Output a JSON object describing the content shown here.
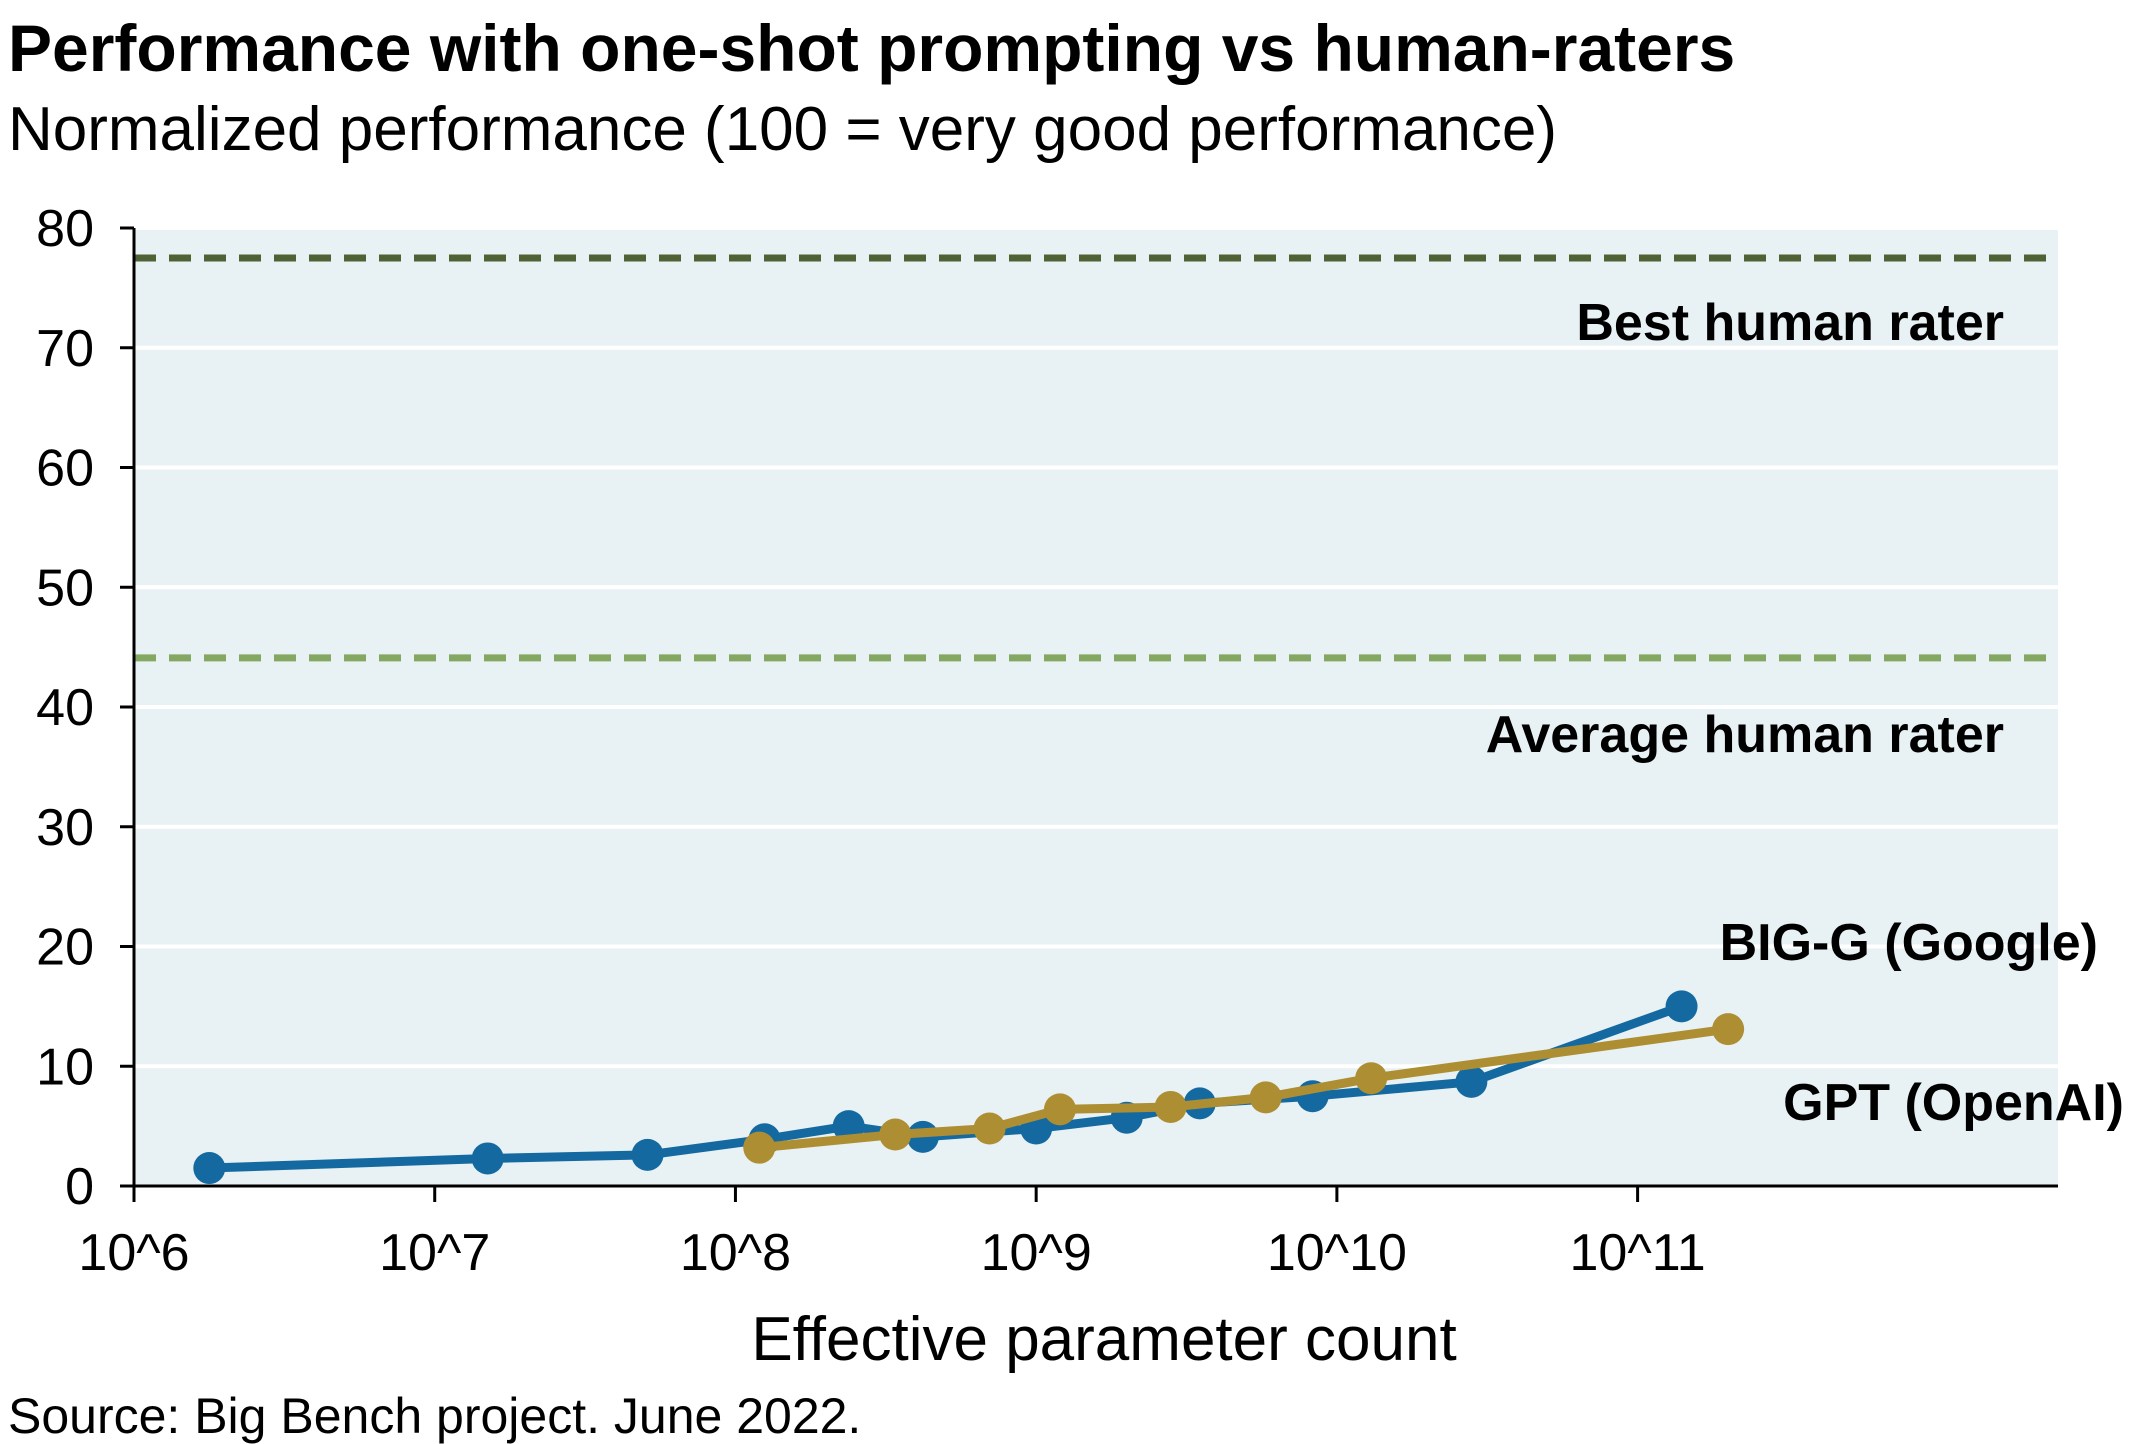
{
  "title": "Performance with one-shot prompting vs human-raters",
  "subtitle": "Normalized performance (100 = very good performance)",
  "source": "Source: Big Bench project. June 2022.",
  "chart_data": {
    "type": "line",
    "xlabel": "Effective parameter count",
    "ylabel": "",
    "x_scale": "log",
    "xlim": [
      1000000,
      2500000000000
    ],
    "ylim": [
      0,
      80
    ],
    "x_ticks": [
      {
        "value": 1000000,
        "label": "10^6"
      },
      {
        "value": 10000000,
        "label": "10^7"
      },
      {
        "value": 100000000,
        "label": "10^8"
      },
      {
        "value": 1000000000,
        "label": "10^9"
      },
      {
        "value": 10000000000,
        "label": "10^10"
      },
      {
        "value": 100000000000,
        "label": "10^11"
      }
    ],
    "y_ticks": [
      0,
      10,
      20,
      30,
      40,
      50,
      60,
      70,
      80
    ],
    "grid": "horizontal",
    "plot_background": "#e8f1f3",
    "reference_lines": [
      {
        "label": "Best human rater",
        "value": 77.5,
        "color": "#4f6236"
      },
      {
        "label": "Average human rater",
        "value": 44.1,
        "color": "#84a862"
      }
    ],
    "series": [
      {
        "name": "BIG-G (Google)",
        "color": "#1469a0",
        "points": [
          {
            "x": 1780000,
            "y": 1.5
          },
          {
            "x": 15000000,
            "y": 2.3
          },
          {
            "x": 51000000,
            "y": 2.6
          },
          {
            "x": 125000000,
            "y": 3.9
          },
          {
            "x": 238000000,
            "y": 5.0
          },
          {
            "x": 420000000,
            "y": 4.1
          },
          {
            "x": 1000000000,
            "y": 4.8
          },
          {
            "x": 2000000000,
            "y": 5.7
          },
          {
            "x": 3500000000,
            "y": 6.9
          },
          {
            "x": 8300000000,
            "y": 7.5
          },
          {
            "x": 28000000000,
            "y": 8.7
          },
          {
            "x": 140000000000,
            "y": 15.0
          }
        ]
      },
      {
        "name": "GPT (OpenAI)",
        "color": "#ad8e32",
        "points": [
          {
            "x": 120000000,
            "y": 3.2
          },
          {
            "x": 340000000,
            "y": 4.3
          },
          {
            "x": 700000000,
            "y": 4.8
          },
          {
            "x": 1200000000,
            "y": 6.4
          },
          {
            "x": 2800000000,
            "y": 6.6
          },
          {
            "x": 5800000000,
            "y": 7.4
          },
          {
            "x": 13000000000,
            "y": 9.0
          },
          {
            "x": 200000000000,
            "y": 13.1
          }
        ]
      }
    ]
  }
}
